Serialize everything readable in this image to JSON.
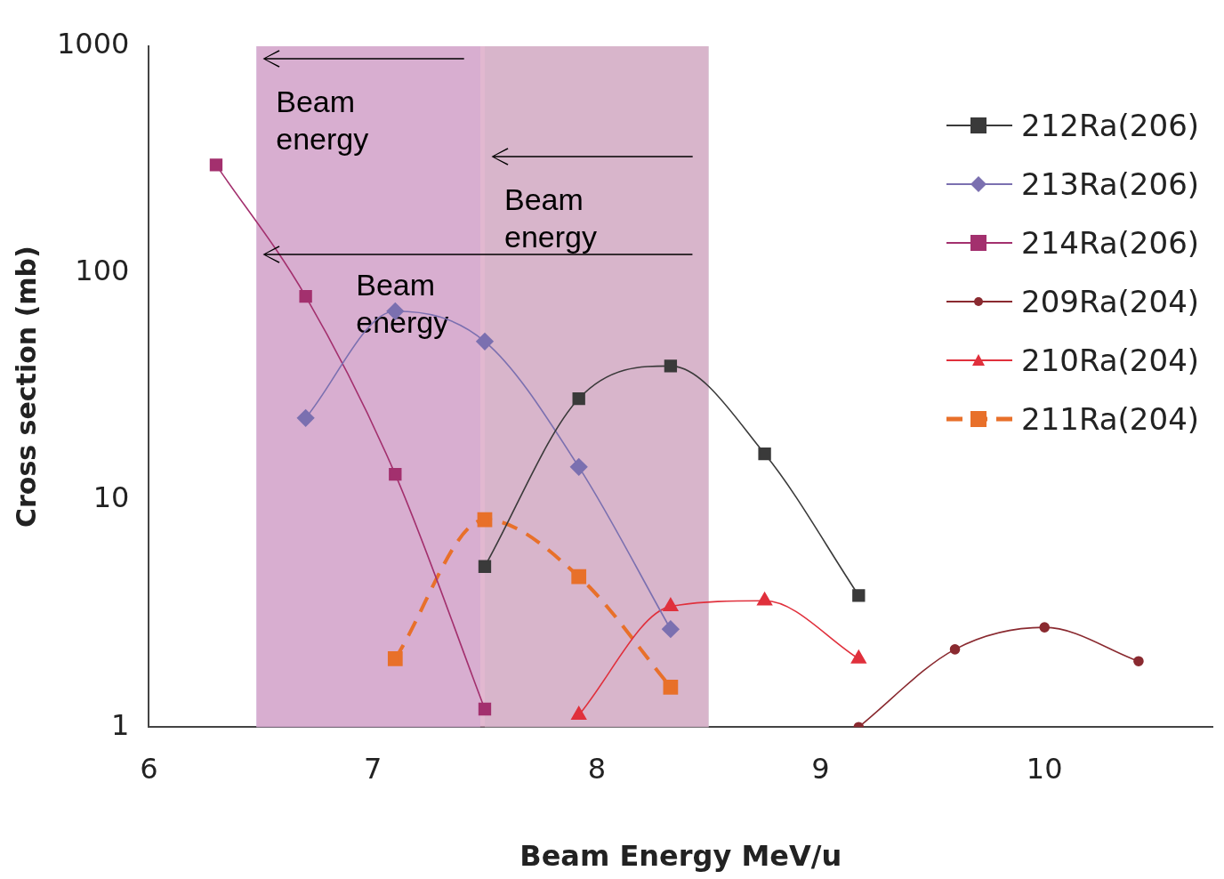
{
  "chart_data": {
    "type": "line",
    "xlabel": "Beam Energy MeV/u",
    "ylabel": "Cross section (mb)",
    "log": "y",
    "grid": false,
    "legend": "top right",
    "xlim": [
      6,
      10.75
    ],
    "xticks": [
      6,
      7,
      8,
      9,
      10
    ],
    "ylim": [
      1,
      1000
    ],
    "yticks": [
      1,
      10,
      100,
      1000
    ],
    "series": [
      {
        "name": "212Ra(206)",
        "color": "#3a3a3a",
        "marker": "square",
        "x": [
          7.5,
          7.92,
          8.33,
          8.75,
          9.17
        ],
        "values": [
          5.1,
          28,
          39,
          16,
          3.8
        ]
      },
      {
        "name": "213Ra(206)",
        "color": "#7b70b0",
        "marker": "diamond",
        "x": [
          6.7,
          7.1,
          7.5,
          7.92,
          8.33
        ],
        "values": [
          23,
          68,
          50,
          14,
          2.7
        ]
      },
      {
        "name": "214Ra(206)",
        "color": "#a3306e",
        "marker": "square",
        "x": [
          6.3,
          6.7,
          7.1,
          7.5
        ],
        "values": [
          300,
          79,
          13,
          1.2
        ]
      },
      {
        "name": "209Ra(204)",
        "color": "#8a2a30",
        "marker": "circle",
        "x": [
          9.17,
          9.6,
          10.0,
          10.42
        ],
        "values": [
          1.0,
          2.2,
          2.75,
          1.95
        ]
      },
      {
        "name": "210Ra(204)",
        "color": "#e0303c",
        "marker": "triangle",
        "x": [
          7.92,
          8.33,
          8.75,
          9.17
        ],
        "values": [
          1.13,
          3.4,
          3.6,
          2.0
        ]
      },
      {
        "name": "211Ra(204)",
        "color": "#e8702a",
        "marker": "square",
        "line_style": "dashed",
        "x": [
          7.1,
          7.5,
          7.92,
          8.33
        ],
        "values": [
          2.0,
          8.2,
          4.6,
          1.5
        ]
      }
    ],
    "bands": [
      {
        "axis": "x",
        "from": 6.48,
        "to": 7.48,
        "label": "Beam energy",
        "color": "#c8c8ff"
      },
      {
        "axis": "x",
        "from": 7.5,
        "to": 8.5,
        "label": "Beam energy",
        "color": "#c8f0e6"
      },
      {
        "axis": "x",
        "from": 6.48,
        "to": 8.5,
        "label": "Beam energy",
        "color": "#d8a0c0"
      }
    ]
  }
}
